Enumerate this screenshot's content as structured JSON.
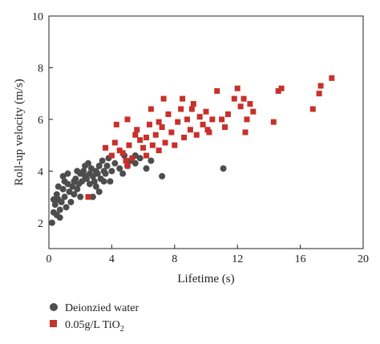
{
  "chart_data": {
    "type": "scatter",
    "xlabel": "Lifetime (s)",
    "ylabel": "Roll-up velocity (m/s)",
    "xlim": [
      0,
      20
    ],
    "ylim": [
      1,
      10
    ],
    "xticks": [
      0,
      4,
      8,
      12,
      16,
      20
    ],
    "yticks": [
      2,
      4,
      6,
      8,
      10
    ],
    "grid": false,
    "legend_position": "bottom-left, below plot",
    "series": [
      {
        "name": "Deionzied water",
        "marker": "circle",
        "color": "#4d4d4d",
        "points": [
          [
            0.2,
            2.0
          ],
          [
            0.3,
            2.4
          ],
          [
            0.5,
            2.3
          ],
          [
            0.6,
            2.9
          ],
          [
            0.7,
            2.5
          ],
          [
            0.4,
            2.7
          ],
          [
            0.8,
            2.8
          ],
          [
            0.5,
            3.1
          ],
          [
            0.6,
            3.4
          ],
          [
            0.9,
            3.3
          ],
          [
            0.7,
            2.2
          ],
          [
            0.3,
            2.9
          ],
          [
            1.0,
            3.6
          ],
          [
            1.0,
            3.0
          ],
          [
            1.1,
            2.6
          ],
          [
            1.2,
            3.5
          ],
          [
            1.3,
            3.2
          ],
          [
            1.4,
            2.8
          ],
          [
            1.5,
            3.4
          ],
          [
            1.6,
            3.1
          ],
          [
            1.7,
            3.7
          ],
          [
            1.8,
            3.3
          ],
          [
            1.9,
            3.5
          ],
          [
            2.0,
            3.9
          ],
          [
            2.1,
            3.6
          ],
          [
            2.2,
            4.0
          ],
          [
            2.3,
            3.8
          ],
          [
            2.4,
            3.7
          ],
          [
            2.5,
            4.3
          ],
          [
            2.6,
            3.9
          ],
          [
            2.7,
            4.1
          ],
          [
            2.8,
            3.8
          ],
          [
            2.9,
            3.6
          ],
          [
            3.0,
            4.0
          ],
          [
            3.1,
            3.9
          ],
          [
            3.2,
            4.2
          ],
          [
            3.3,
            3.7
          ],
          [
            3.4,
            4.4
          ],
          [
            3.5,
            4.0
          ],
          [
            3.6,
            3.9
          ],
          [
            3.7,
            4.2
          ],
          [
            3.8,
            4.5
          ],
          [
            4.0,
            4.0
          ],
          [
            4.2,
            4.3
          ],
          [
            4.5,
            4.1
          ],
          [
            4.8,
            4.6
          ],
          [
            5.0,
            4.2
          ],
          [
            5.2,
            4.4
          ],
          [
            5.5,
            4.3
          ],
          [
            5.8,
            4.5
          ],
          [
            6.2,
            4.1
          ],
          [
            6.5,
            4.4
          ],
          [
            7.2,
            3.8
          ],
          [
            3.0,
            3.4
          ],
          [
            2.0,
            3.0
          ],
          [
            2.8,
            3.0
          ],
          [
            1.2,
            3.9
          ],
          [
            1.8,
            4.0
          ],
          [
            2.3,
            4.2
          ],
          [
            3.2,
            3.2
          ],
          [
            3.9,
            3.6
          ],
          [
            4.7,
            3.9
          ],
          [
            5.5,
            4.6
          ],
          [
            11.1,
            4.1
          ],
          [
            0.9,
            3.8
          ],
          [
            1.6,
            3.6
          ],
          [
            2.6,
            3.5
          ],
          [
            3.5,
            3.6
          ]
        ]
      },
      {
        "name": "0.05g/L TiO",
        "name_subscript": "2",
        "marker": "square",
        "color": "#c8302b",
        "points": [
          [
            2.5,
            3.0
          ],
          [
            3.6,
            4.9
          ],
          [
            4.0,
            4.6
          ],
          [
            4.2,
            5.1
          ],
          [
            4.5,
            4.8
          ],
          [
            4.7,
            4.7
          ],
          [
            4.9,
            4.4
          ],
          [
            5.1,
            5.0
          ],
          [
            5.3,
            4.5
          ],
          [
            5.6,
            5.6
          ],
          [
            5.8,
            5.2
          ],
          [
            6.0,
            4.9
          ],
          [
            6.2,
            5.3
          ],
          [
            6.4,
            5.8
          ],
          [
            6.6,
            5.0
          ],
          [
            6.8,
            5.4
          ],
          [
            7.0,
            4.8
          ],
          [
            7.2,
            5.7
          ],
          [
            7.4,
            5.1
          ],
          [
            7.6,
            6.2
          ],
          [
            7.8,
            5.5
          ],
          [
            8.0,
            5.0
          ],
          [
            8.2,
            5.9
          ],
          [
            8.4,
            6.4
          ],
          [
            8.6,
            5.3
          ],
          [
            8.8,
            6.0
          ],
          [
            9.0,
            5.6
          ],
          [
            9.2,
            6.6
          ],
          [
            9.4,
            5.4
          ],
          [
            9.6,
            6.1
          ],
          [
            9.8,
            5.8
          ],
          [
            10.0,
            6.3
          ],
          [
            10.2,
            5.5
          ],
          [
            10.4,
            6.0
          ],
          [
            10.7,
            7.1
          ],
          [
            11.0,
            6.0
          ],
          [
            11.2,
            5.7
          ],
          [
            11.4,
            6.2
          ],
          [
            12.0,
            7.2
          ],
          [
            12.2,
            6.5
          ],
          [
            12.4,
            6.8
          ],
          [
            12.6,
            6.0
          ],
          [
            12.8,
            6.6
          ],
          [
            13.0,
            6.3
          ],
          [
            14.3,
            5.9
          ],
          [
            14.6,
            7.1
          ],
          [
            14.8,
            7.2
          ],
          [
            16.8,
            6.4
          ],
          [
            17.2,
            7.0
          ],
          [
            17.3,
            7.3
          ],
          [
            18.0,
            7.6
          ],
          [
            5.0,
            6.0
          ],
          [
            5.5,
            5.4
          ],
          [
            6.5,
            6.4
          ],
          [
            7.0,
            5.9
          ],
          [
            7.3,
            6.8
          ],
          [
            8.5,
            6.8
          ],
          [
            9.1,
            6.4
          ],
          [
            10.1,
            5.6
          ],
          [
            11.8,
            6.8
          ],
          [
            12.5,
            5.5
          ],
          [
            6.2,
            4.6
          ],
          [
            4.3,
            5.8
          ],
          [
            5.0,
            4.2
          ]
        ]
      }
    ]
  }
}
